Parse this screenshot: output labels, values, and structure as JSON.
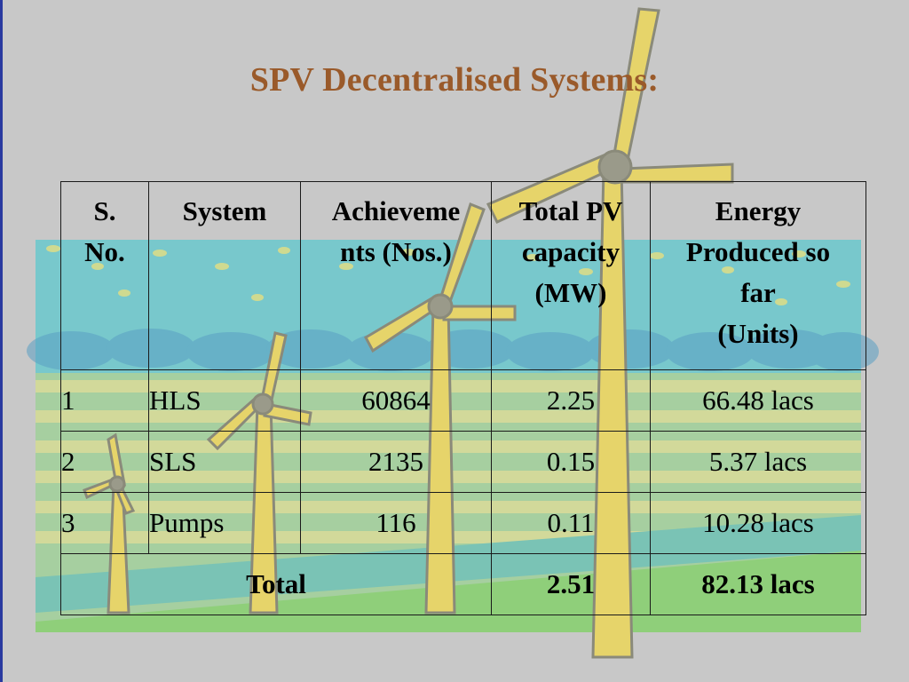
{
  "slide": {
    "title": "SPV Decentralised Systems:"
  },
  "table": {
    "headers": {
      "sno_line1": "S.",
      "sno_line2": "No.",
      "system": "System",
      "ach_line1": "Achieveme",
      "ach_line2": "nts (Nos.)",
      "pv_line1": "Total PV",
      "pv_line2": "capacity",
      "pv_line3": "(MW)",
      "energy_line1": "Energy",
      "energy_line2": "Produced so",
      "energy_line3": "far",
      "energy_line4": "(Units)"
    },
    "rows": [
      {
        "sno": "1",
        "system": "HLS",
        "achievements": "60864",
        "pv": "2.25",
        "energy": "66.48 lacs"
      },
      {
        "sno": "2",
        "system": "SLS",
        "achievements": "2135",
        "pv": "0.15",
        "energy": "5.37 lacs"
      },
      {
        "sno": "3",
        "system": "Pumps",
        "achievements": "116",
        "pv": "0.11",
        "energy": "10.28 lacs"
      }
    ],
    "total": {
      "label": "Total",
      "pv": "2.51",
      "energy": "82.13 lacs"
    }
  },
  "colors": {
    "title": "#9a5a2a",
    "background": "#c8c8c8",
    "sea": "#6fc3c8",
    "grass": "#8fcf7a",
    "turbine": "#e6d46a"
  }
}
